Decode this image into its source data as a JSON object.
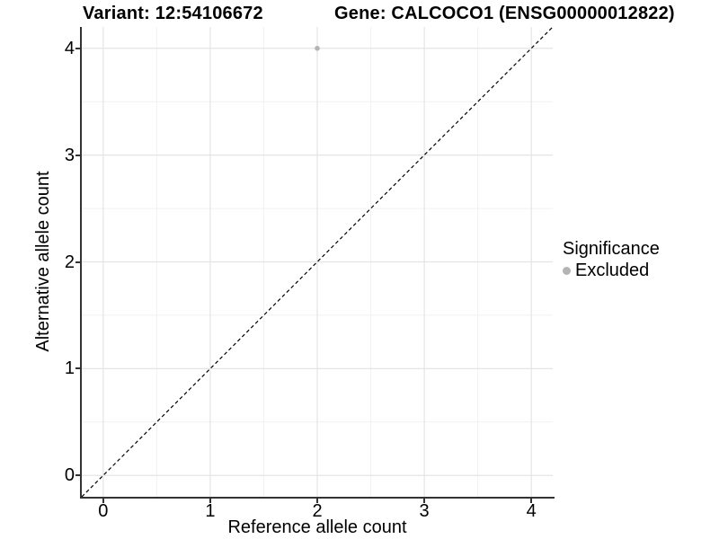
{
  "titles": {
    "variant": "Variant: 12:54106672",
    "gene": "Gene: CALCOCO1 (ENSG00000012822)"
  },
  "axes": {
    "x": {
      "label": "Reference allele count",
      "tick_labels": [
        "0",
        "1",
        "2",
        "3",
        "4"
      ]
    },
    "y": {
      "label": "Alternative allele count",
      "tick_labels": [
        "0",
        "1",
        "2",
        "3",
        "4"
      ]
    }
  },
  "legend": {
    "title": "Significance",
    "items": [
      {
        "label": "Excluded",
        "color": "#b4b4b4"
      }
    ]
  },
  "colors": {
    "point_excluded": "#b4b4b4",
    "grid_major": "#e4e4e4",
    "grid_minor": "#f1f1f1",
    "axis_line": "#333333",
    "reference_line": "#000000",
    "background": "#ffffff",
    "text": "#000000"
  },
  "chart_data": {
    "type": "scatter",
    "title": "Variant: 12:54106672 | Gene: CALCOCO1 (ENSG00000012822)",
    "xlabel": "Reference allele count",
    "ylabel": "Alternative allele count",
    "xlim": [
      -0.2,
      4.2
    ],
    "ylim": [
      -0.2,
      4.2
    ],
    "x_major_ticks": [
      0,
      1,
      2,
      3,
      4
    ],
    "y_major_ticks": [
      0,
      1,
      2,
      3,
      4
    ],
    "x_minor_ticks": [
      0.5,
      1.5,
      2.5,
      3.5
    ],
    "y_minor_ticks": [
      0.5,
      1.5,
      2.5,
      3.5
    ],
    "grid": "major+minor",
    "legend_position": "right",
    "series": [
      {
        "name": "Excluded",
        "color": "#b4b4b4",
        "points": [
          {
            "x": 2,
            "y": 4
          }
        ]
      }
    ],
    "reference_line": {
      "kind": "identity",
      "slope": 1,
      "intercept": 0,
      "style": "dashed",
      "color": "#000000"
    }
  }
}
